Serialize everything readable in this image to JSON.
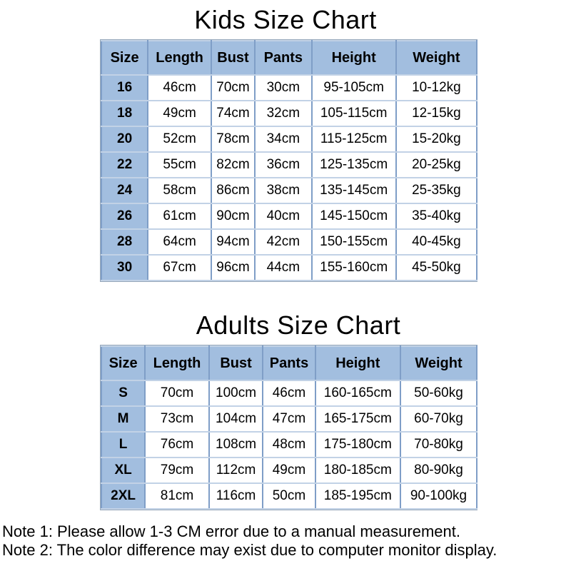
{
  "tables": [
    {
      "title": "Kids Size Chart",
      "headers": [
        "Size",
        "Length",
        "Bust",
        "Pants",
        "Height",
        "Weight"
      ],
      "rows": [
        [
          "16",
          "46cm",
          "70cm",
          "30cm",
          "95-105cm",
          "10-12kg"
        ],
        [
          "18",
          "49cm",
          "74cm",
          "32cm",
          "105-115cm",
          "12-15kg"
        ],
        [
          "20",
          "52cm",
          "78cm",
          "34cm",
          "115-125cm",
          "15-20kg"
        ],
        [
          "22",
          "55cm",
          "82cm",
          "36cm",
          "125-135cm",
          "20-25kg"
        ],
        [
          "24",
          "58cm",
          "86cm",
          "38cm",
          "135-145cm",
          "25-35kg"
        ],
        [
          "26",
          "61cm",
          "90cm",
          "40cm",
          "145-150cm",
          "35-40kg"
        ],
        [
          "28",
          "64cm",
          "94cm",
          "42cm",
          "150-155cm",
          "40-45kg"
        ],
        [
          "30",
          "67cm",
          "96cm",
          "44cm",
          "155-160cm",
          "45-50kg"
        ]
      ]
    },
    {
      "title": "Adults Size Chart",
      "headers": [
        "Size",
        "Length",
        "Bust",
        "Pants",
        "Height",
        "Weight"
      ],
      "rows": [
        [
          "S",
          "70cm",
          "100cm",
          "46cm",
          "160-165cm",
          "50-60kg"
        ],
        [
          "M",
          "73cm",
          "104cm",
          "47cm",
          "165-175cm",
          "60-70kg"
        ],
        [
          "L",
          "76cm",
          "108cm",
          "48cm",
          "175-180cm",
          "70-80kg"
        ],
        [
          "XL",
          "79cm",
          "112cm",
          "49cm",
          "180-185cm",
          "80-90kg"
        ],
        [
          "2XL",
          "81cm",
          "116cm",
          "50cm",
          "185-195cm",
          "90-100kg"
        ]
      ]
    }
  ],
  "notes": [
    "Note 1: Please allow 1-3 CM error due to a manual measurement.",
    "Note 2: The color difference may exist due to computer monitor display."
  ],
  "colors": {
    "header_fill": "#a2bedf",
    "vertical_rule": "#7f9ec7",
    "horizontal_rule": "#c2d2e6",
    "outer_border": "#97a8ba",
    "text": "#000000",
    "background": "#ffffff"
  }
}
